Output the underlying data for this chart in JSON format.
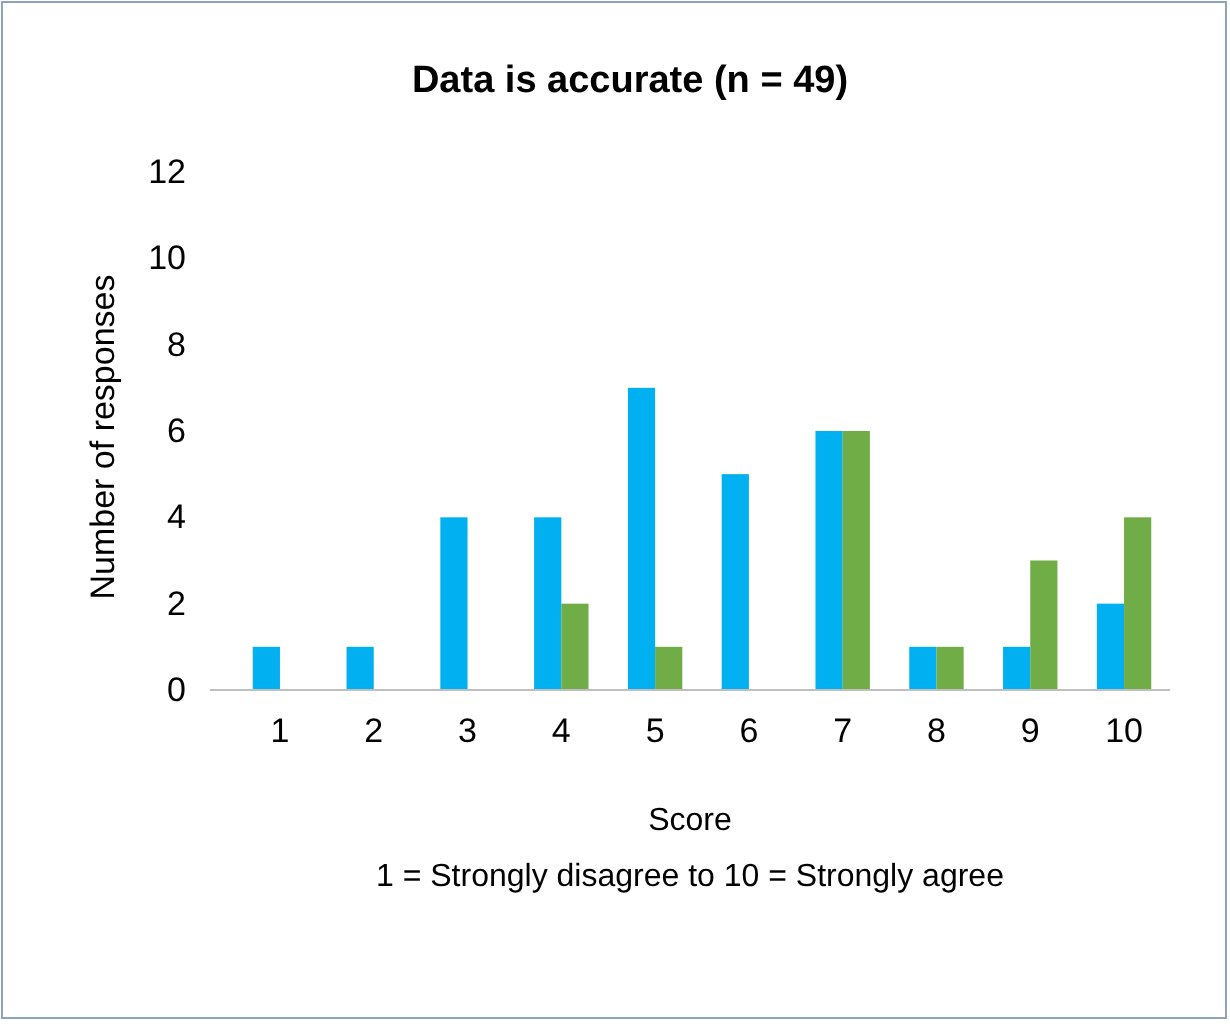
{
  "chart_data": {
    "type": "bar",
    "title": "Data is accurate (n = 49)",
    "xlabel": "Score",
    "ylabel": "Number of responses",
    "annotations": [
      "1 = Strongly disagree to 10 = Strongly agree"
    ],
    "categories": [
      "1",
      "2",
      "3",
      "4",
      "5",
      "6",
      "7",
      "8",
      "9",
      "10"
    ],
    "series": [
      {
        "color": "#00b0f0",
        "values": [
          1,
          1,
          4,
          4,
          7,
          5,
          6,
          1,
          1,
          2
        ]
      },
      {
        "color": "#70ad47",
        "values": [
          0,
          0,
          0,
          2,
          1,
          0,
          6,
          1,
          3,
          4
        ]
      }
    ],
    "ylim": [
      0,
      12
    ],
    "yticks": [
      0,
      2,
      4,
      6,
      8,
      10,
      12
    ],
    "grid": false
  }
}
